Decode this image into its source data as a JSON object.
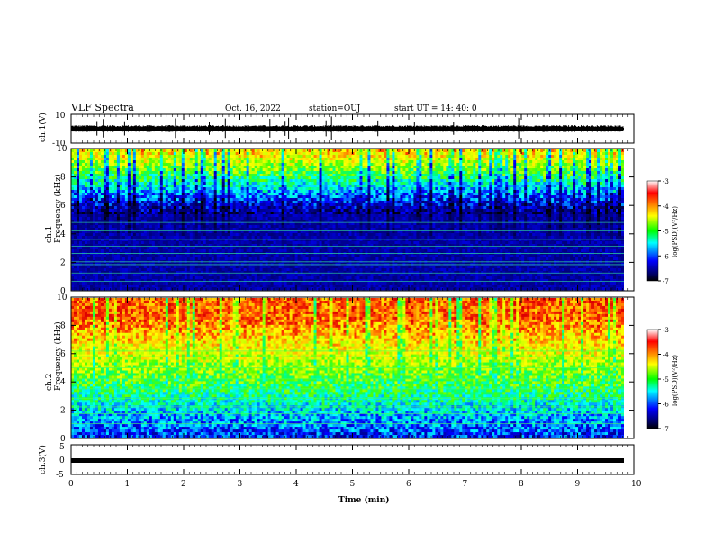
{
  "header": {
    "title": "VLF Spectra",
    "date": "Oct. 16, 2022",
    "station": "station=OUJ",
    "start_ut": "start  UT =  14: 40: 0"
  },
  "colorbar": {
    "label": "log(PSD)(V²/Hz)",
    "ticks": [
      "-3",
      "-4",
      "-5",
      "-6",
      "-7"
    ],
    "colors": [
      "#ffffff",
      "#ff0000",
      "#ffff00",
      "#00ff00",
      "#00ffff",
      "#0000ff",
      "#000066",
      "#000000"
    ]
  },
  "chart_data": [
    {
      "type": "line",
      "panel": "ch1-waveform",
      "ylabel": "ch.1(V)",
      "ylim": [
        -10,
        10
      ],
      "yticks": [
        "10",
        "-10"
      ],
      "x_range": [
        0,
        9.83
      ],
      "series": [
        {
          "baseline": 0,
          "amplitude_typical": 1
        }
      ]
    },
    {
      "type": "heatmap",
      "panel": "ch1-spectrogram",
      "ylabel": "ch.1 Frequency (kHz)",
      "ylim": [
        0,
        10
      ],
      "yticks": [
        "0",
        "2",
        "4",
        "6",
        "8",
        "10"
      ],
      "zlim": [
        -7,
        -3
      ],
      "x_range": [
        0,
        9.83
      ]
    },
    {
      "type": "heatmap",
      "panel": "ch2-spectrogram",
      "ylabel": "ch.2 Frequency (kHz)",
      "ylim": [
        0,
        10
      ],
      "yticks": [
        "0",
        "2",
        "4",
        "6",
        "8",
        "10"
      ],
      "zlim": [
        -7,
        -3
      ],
      "x_range": [
        0,
        9.83
      ]
    },
    {
      "type": "line",
      "panel": "ch3-waveform",
      "ylabel": "ch.3(V)",
      "ylim": [
        -5,
        5
      ],
      "yticks": [
        "5",
        "0",
        "-5"
      ],
      "x_range": [
        0,
        9.83
      ],
      "series": [
        {
          "constant_value": -1
        }
      ]
    }
  ],
  "xaxis": {
    "label": "Time  (min)",
    "ticks": [
      "0",
      "1",
      "2",
      "3",
      "4",
      "5",
      "6",
      "7",
      "8",
      "9",
      "10"
    ],
    "xlim": [
      0,
      10
    ]
  }
}
